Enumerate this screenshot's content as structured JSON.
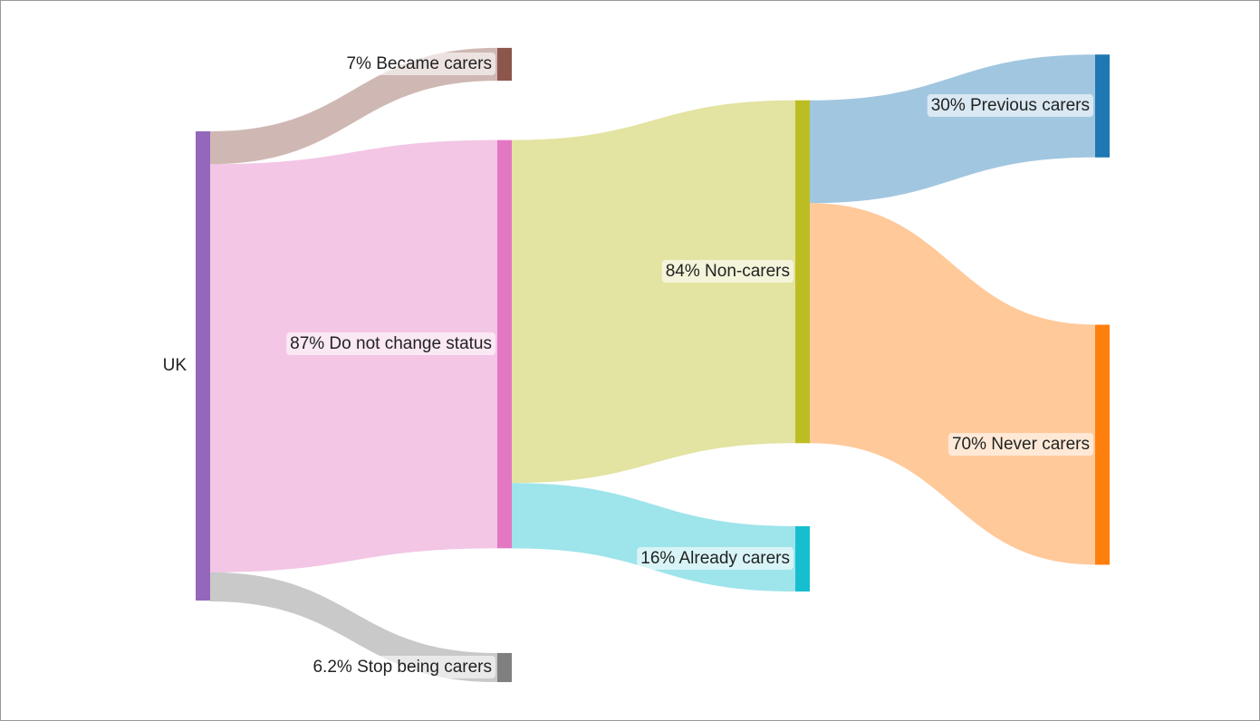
{
  "chart_data": {
    "type": "sankey",
    "root": {
      "label": "UK",
      "color": "#9467bd",
      "children": [
        {
          "label": "7% Became carers",
          "value": 7,
          "color": "#8c564b"
        },
        {
          "label": "87% Do not change status",
          "value": 87,
          "color": "#e377c2",
          "children": [
            {
              "label": "84% Non-carers",
              "value": 84,
              "color": "#bcbd22",
              "children": [
                {
                  "label": "30% Previous carers",
                  "value": 30,
                  "color": "#1f77b4"
                },
                {
                  "label": "70% Never carers",
                  "value": 70,
                  "color": "#ff7f0e"
                }
              ]
            },
            {
              "label": "16% Already carers",
              "value": 16,
              "color": "#17becf"
            }
          ]
        },
        {
          "label": "6.2% Stop being carers",
          "value": 6.2,
          "color": "#7f7f7f"
        }
      ]
    }
  }
}
